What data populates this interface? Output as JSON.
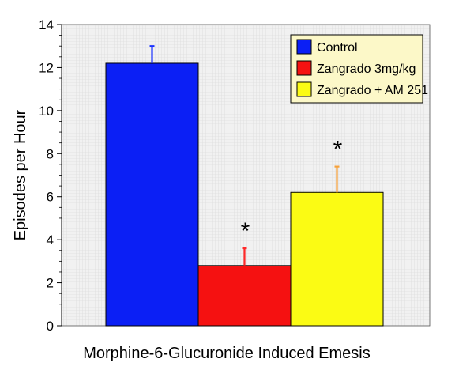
{
  "chart_data": {
    "type": "bar",
    "categories": [
      "Control",
      "Zangrado 3mg/kg",
      "Zangrado + AM 251"
    ],
    "values": [
      12.2,
      2.8,
      6.2
    ],
    "errors": [
      0.8,
      0.8,
      1.2
    ],
    "colors": [
      "#0b1ff5",
      "#f51111",
      "#fbfb14"
    ],
    "error_colors": [
      "#1a33ff",
      "#ff2a2a",
      "#f6a13a"
    ],
    "significance": [
      "",
      "*",
      "*"
    ],
    "xlabel": "Morphine-6-Glucuronide Induced Emesis",
    "ylabel": "Episodes per Hour",
    "ylim": [
      0,
      14
    ],
    "yticks": [
      "0",
      "2",
      "4",
      "6",
      "8",
      "10",
      "12",
      "14"
    ],
    "grid": true,
    "legend": {
      "position": "top-right",
      "entries": [
        "Control",
        "Zangrado 3mg/kg",
        "Zangrado + AM 251"
      ],
      "background": "#fcf8c8"
    },
    "plot_background": "#f1f1f1"
  }
}
